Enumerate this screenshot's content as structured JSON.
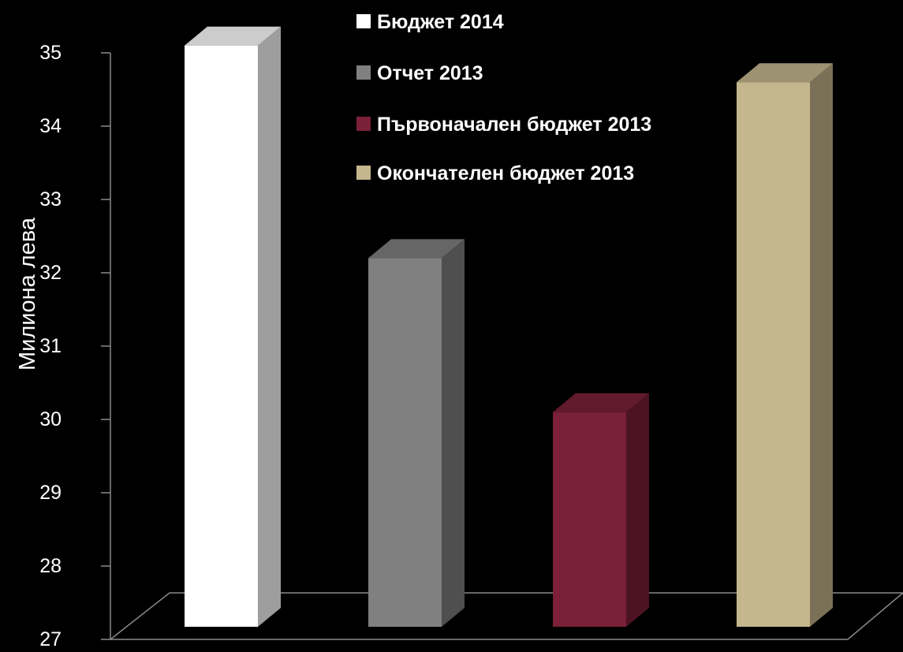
{
  "chart_data": {
    "type": "bar",
    "title": "",
    "xlabel": "",
    "ylabel": "Милиона лева",
    "ylim": [
      27,
      35
    ],
    "yticks": [
      27,
      28,
      29,
      30,
      31,
      32,
      33,
      34,
      35
    ],
    "grid": false,
    "legend_placement": "top",
    "series": [
      {
        "name": "Бюджет 2014",
        "value": 35.1,
        "color": "#ffffff"
      },
      {
        "name": "Отчет 2013",
        "value": 32.2,
        "color": "#808080"
      },
      {
        "name": "Първоначален бюджет 2013",
        "value": 30.1,
        "color": "#7a2038"
      },
      {
        "name": "Окончателен бюджет 2013",
        "value": 34.6,
        "color": "#c4b68e"
      }
    ]
  }
}
